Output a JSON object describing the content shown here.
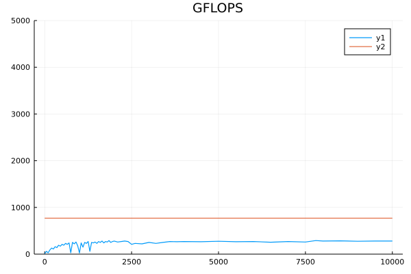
{
  "chart_data": {
    "type": "line",
    "title": "GFLOPS",
    "xlabel": "",
    "ylabel": "",
    "xlim": [
      -300,
      10300
    ],
    "ylim": [
      0,
      5000
    ],
    "xticks": [
      0,
      2500,
      5000,
      7500,
      10000
    ],
    "xtick_labels": [
      "0",
      "2500",
      "5000",
      "7500",
      "10000"
    ],
    "yticks": [
      0,
      1000,
      2000,
      3000,
      4000,
      5000
    ],
    "ytick_labels": [
      "0",
      "1000",
      "2000",
      "3000",
      "4000",
      "5000"
    ],
    "grid": true,
    "legend_position": "top-right",
    "series": [
      {
        "name": "y1",
        "color": "#009AFA",
        "x": [
          0,
          50,
          100,
          150,
          200,
          250,
          300,
          350,
          400,
          450,
          500,
          550,
          600,
          650,
          700,
          750,
          800,
          850,
          900,
          950,
          1000,
          1050,
          1100,
          1150,
          1200,
          1250,
          1300,
          1350,
          1400,
          1450,
          1500,
          1550,
          1600,
          1650,
          1700,
          1750,
          1800,
          1850,
          1900,
          1950,
          2000,
          2100,
          2200,
          2300,
          2400,
          2500,
          2600,
          2800,
          3000,
          3200,
          3400,
          3600,
          3800,
          4000,
          4500,
          5000,
          5500,
          6000,
          6500,
          7000,
          7500,
          7800,
          8000,
          8500,
          9000,
          9500,
          10000
        ],
        "y": [
          10,
          60,
          30,
          90,
          130,
          110,
          160,
          140,
          190,
          170,
          210,
          190,
          230,
          210,
          240,
          30,
          250,
          220,
          260,
          180,
          25,
          240,
          150,
          250,
          230,
          270,
          60,
          250,
          240,
          260,
          230,
          270,
          250,
          280,
          240,
          270,
          260,
          290,
          250,
          270,
          280,
          260,
          270,
          280,
          270,
          210,
          230,
          220,
          250,
          230,
          250,
          270,
          265,
          270,
          265,
          275,
          265,
          270,
          255,
          270,
          260,
          290,
          280,
          285,
          275,
          280,
          280
        ]
      },
      {
        "name": "y2",
        "color": "#E26F46",
        "x": [
          0,
          10000
        ],
        "y": [
          770,
          770
        ]
      }
    ]
  }
}
